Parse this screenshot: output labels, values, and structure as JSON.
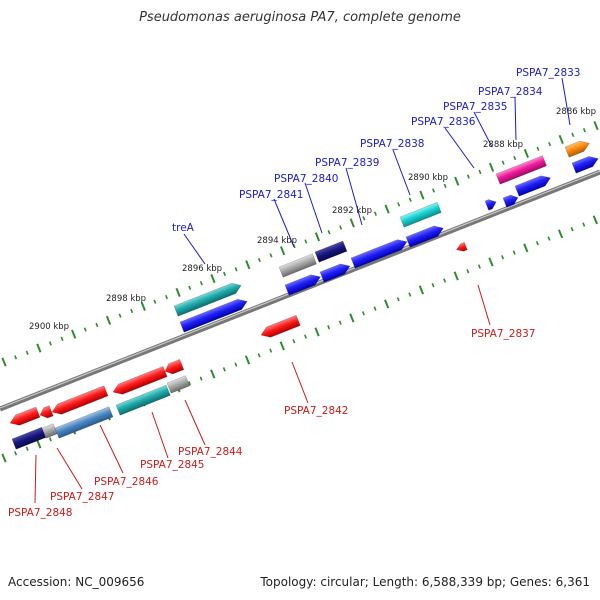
{
  "title": "Pseudomonas aeruginosa PA7, complete genome",
  "footer": {
    "accession": "Accession: NC_009656",
    "summary": "Topology: circular; Length: 6,588,339 bp; Genes: 6,361"
  },
  "colors": {
    "backbone": "#8c8c8c",
    "tick": "#2e8b2e",
    "forward_label": "#1a1acc",
    "reverse_label": "#cc1a1a"
  },
  "scale_labels": [
    "2886 kbp",
    "2888 kbp",
    "2890 kbp",
    "2892 kbp",
    "2894 kbp",
    "2896 kbp",
    "2898 kbp",
    "2900 kbp"
  ],
  "forward_genes": [
    "PSPA7_2833",
    "PSPA7_2834",
    "PSPA7_2835",
    "PSPA7_2836",
    "PSPA7_2838",
    "PSPA7_2839",
    "PSPA7_2840",
    "PSPA7_2841",
    "treA"
  ],
  "reverse_genes": [
    "PSPA7_2837",
    "PSPA7_2842",
    "PSPA7_2844",
    "PSPA7_2845",
    "PSPA7_2846",
    "PSPA7_2847",
    "PSPA7_2848"
  ]
}
